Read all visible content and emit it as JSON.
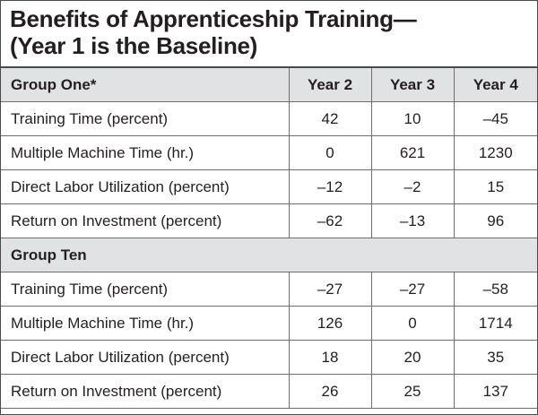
{
  "title": {
    "line1": "Benefits of Apprenticeship Training—",
    "line2": "(Year 1 is the Baseline)"
  },
  "table": {
    "headers": [
      "Group One*",
      "Year 2",
      "Year 3",
      "Year 4"
    ],
    "group_one_rows": [
      {
        "label": "Training Time (percent)",
        "values": [
          "42",
          "10",
          "–45"
        ]
      },
      {
        "label": "Multiple Machine Time (hr.)",
        "values": [
          "0",
          "621",
          "1230"
        ]
      },
      {
        "label": "Direct Labor Utilization (percent)",
        "values": [
          "–12",
          "–2",
          "15"
        ]
      },
      {
        "label": "Return on Investment (percent)",
        "values": [
          "–62",
          "–13",
          "96"
        ]
      }
    ],
    "group_ten_label": "Group Ten",
    "group_ten_rows": [
      {
        "label": "Training Time (percent)",
        "values": [
          "–27",
          "–27",
          "–58"
        ]
      },
      {
        "label": "Multiple Machine Time (hr.)",
        "values": [
          "126",
          "0",
          "1714"
        ]
      },
      {
        "label": "Direct Labor Utilization (percent)",
        "values": [
          "18",
          "20",
          "35"
        ]
      },
      {
        "label": "Return on Investment (percent)",
        "values": [
          "26",
          "25",
          "137"
        ]
      }
    ]
  },
  "colors": {
    "header_background": "#e1e2e3",
    "text": "#231f20",
    "grid_lines": "#6d6e71"
  }
}
